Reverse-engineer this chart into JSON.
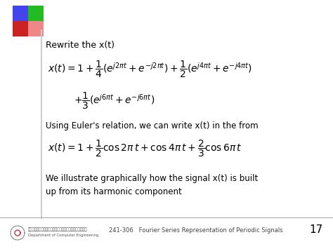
{
  "bg_color": "#ffffff",
  "slide_number": "17",
  "footer_text": "241-306   Fourier Series Representation of Periodic Signals",
  "left_bar_color": "#cccccc",
  "title_text": "Rewrite the x(t)",
  "eq1_line1": "$x(t)=1+\\dfrac{1}{4}(e^{j2\\pi t}+e^{-j2\\pi t})+\\dfrac{1}{2}(e^{j4\\pi t}+e^{-j4\\pi t})$",
  "eq1_line2": "$+\\dfrac{1}{3}(e^{j6\\pi t}+e^{-j6\\pi t})$",
  "euler_text": "Using Euler's relation, we can write x(t) in the from",
  "eq2": "$x(t)=1+\\dfrac{1}{2}\\cos 2\\pi\\, t+\\cos 4\\pi\\, t+\\dfrac{2}{3}\\cos 6\\pi\\, t$",
  "illustrate_text": "We illustrate graphically how the signal x(t) is built\nup from its harmonic component",
  "sq_colors": [
    [
      "#4444ee",
      "#22bb22"
    ],
    [
      "#cc2222",
      "#ee8888"
    ]
  ],
  "title_fontsize": 9,
  "eq_fontsize": 10,
  "body_fontsize": 8.5,
  "footer_fontsize": 6,
  "slide_num_fontsize": 11
}
